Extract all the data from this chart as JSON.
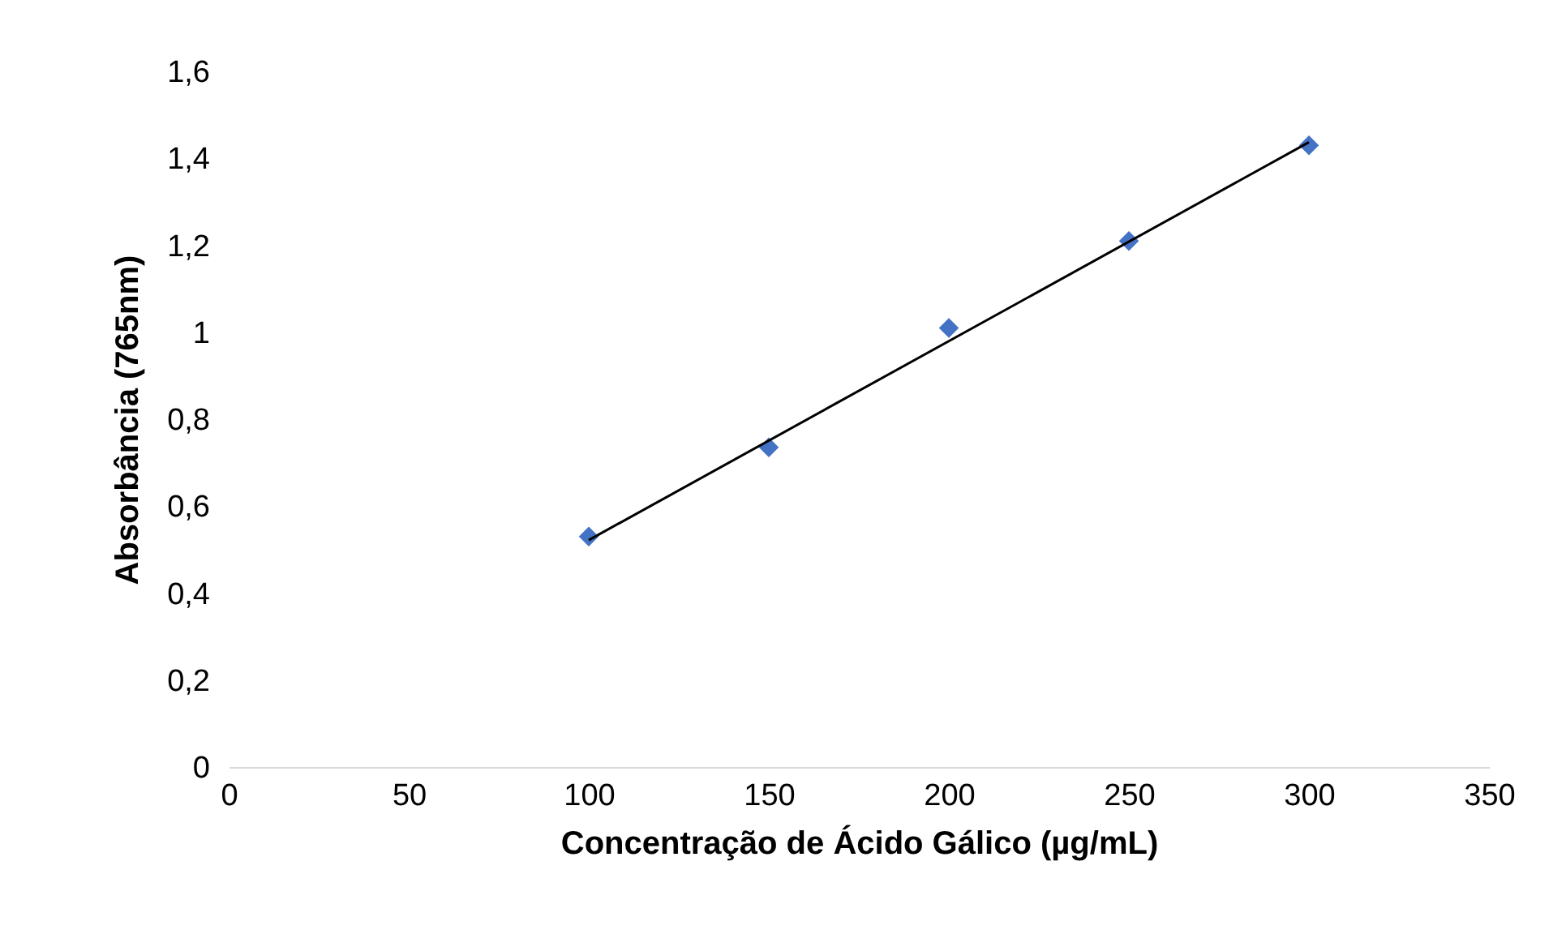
{
  "chart_data": {
    "type": "scatter",
    "xlabel": "Concentração de Ácido Gálico (µg/mL)",
    "ylabel": "Absorbância (765nm)",
    "x": [
      100,
      150,
      200,
      250,
      300
    ],
    "series": [
      {
        "color": "#4472c4",
        "marker": "diamond",
        "values": [
          0.53,
          0.735,
          1.01,
          1.21,
          1.43
        ]
      },
      {
        "type": "line",
        "color": "#000000",
        "marker": "none",
        "x": [
          100,
          300
        ],
        "values": [
          0.522,
          1.437
        ]
      }
    ],
    "grid": false,
    "xlim": [
      0,
      350
    ],
    "xticks": [
      0,
      50,
      100,
      150,
      200,
      250,
      300,
      350
    ],
    "ylim": [
      0,
      1.6
    ],
    "yticks": [
      0,
      {
        "value": 0.2,
        "label": "0,2"
      },
      {
        "value": 0.4,
        "label": "0,4"
      },
      {
        "value": 0.6,
        "label": "0,6"
      },
      {
        "value": 0.8,
        "label": "0,8"
      },
      1,
      {
        "value": 1.2,
        "label": "1,2"
      },
      {
        "value": 1.4,
        "label": "1,4"
      },
      {
        "value": 1.6,
        "label": "1,6"
      }
    ]
  }
}
